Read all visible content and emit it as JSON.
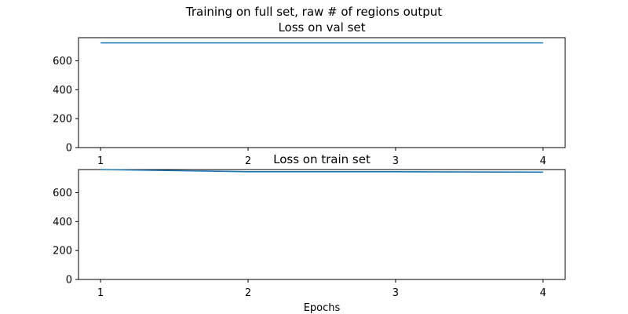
{
  "figure_title": "Training on full set, raw # of regions output",
  "colors": {
    "series": "#1f77b4",
    "axes": "#000000",
    "background": "#ffffff"
  },
  "chart_data": [
    {
      "type": "line",
      "title": "Loss on val set",
      "xlabel": "",
      "ylabel": "",
      "x": [
        1,
        2,
        3,
        4
      ],
      "x_ticks": [
        "1",
        "2",
        "3",
        "4"
      ],
      "y_ticks": [
        "0",
        "200",
        "400",
        "600"
      ],
      "xlim": [
        0.85,
        4.15
      ],
      "ylim": [
        0,
        760
      ],
      "grid": false,
      "series": [
        {
          "values": [
            724,
            724,
            724,
            724
          ]
        }
      ]
    },
    {
      "type": "line",
      "title": "Loss on train set",
      "xlabel": "Epochs",
      "ylabel": "",
      "x": [
        1,
        2,
        3,
        4
      ],
      "x_ticks": [
        "1",
        "2",
        "3",
        "4"
      ],
      "y_ticks": [
        "0",
        "200",
        "400",
        "600"
      ],
      "xlim": [
        0.85,
        4.15
      ],
      "ylim": [
        0,
        760
      ],
      "grid": false,
      "series": [
        {
          "values": [
            760,
            745,
            745,
            742
          ]
        }
      ]
    }
  ]
}
